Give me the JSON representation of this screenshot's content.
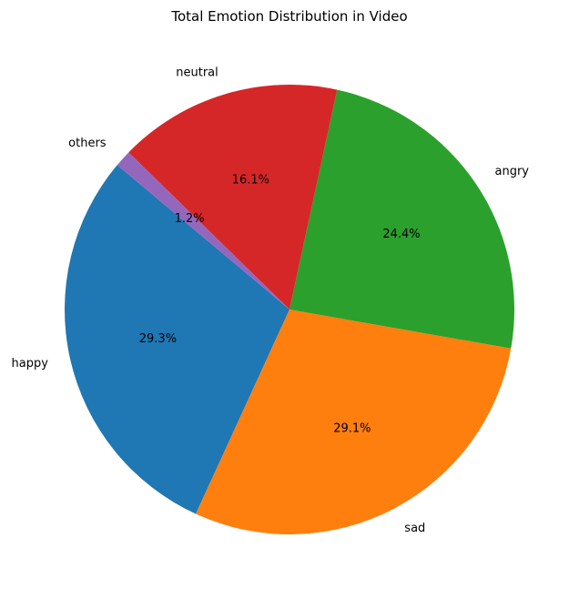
{
  "chart_data": {
    "type": "pie",
    "title": "Total Emotion Distribution in Video",
    "categories": [
      "happy",
      "sad",
      "angry",
      "neutral",
      "others"
    ],
    "values": [
      29.3,
      29.1,
      24.4,
      16.1,
      1.2
    ],
    "percent_labels": [
      "29.3%",
      "29.1%",
      "24.4%",
      "16.1%",
      "1.2%"
    ],
    "colors": [
      "#1f77b4",
      "#ff7f0e",
      "#2ca02c",
      "#d62728",
      "#9467bd"
    ],
    "start_angle_deg": 140,
    "direction": "counterclockwise"
  }
}
